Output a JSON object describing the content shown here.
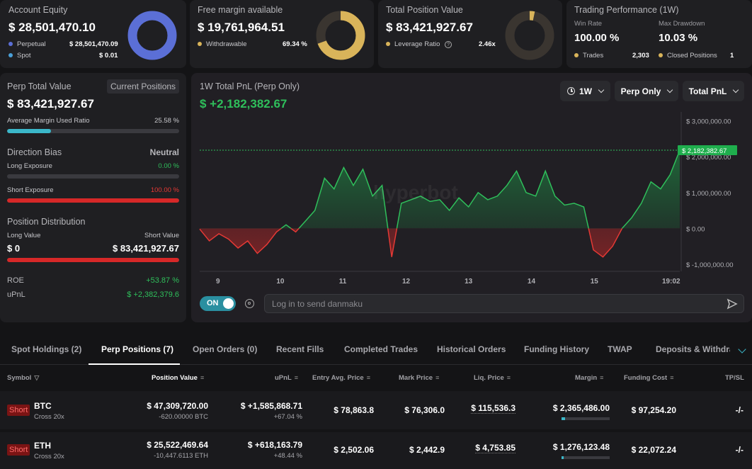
{
  "cards": {
    "equity": {
      "title": "Account Equity",
      "value": "$ 28,501,470.10",
      "perp_label": "Perpetual",
      "perp_value": "$ 28,501,470.09",
      "spot_label": "Spot",
      "spot_value": "$ 0.01",
      "perp_color": "#5b6fd6",
      "spot_color": "#4aa0d8"
    },
    "margin": {
      "title": "Free margin available",
      "value": "$ 19,761,964.51",
      "withdraw_label": "Withdrawable",
      "withdraw_value": "69.34 %",
      "ratio": 0.6934,
      "color": "#d9b45a"
    },
    "position": {
      "title": "Total Position Value",
      "value": "$ 83,421,927.67",
      "leverage_label": "Leverage Ratio",
      "leverage_value": "2.46x",
      "color": "#d9b45a"
    },
    "performance": {
      "title": "Trading Performance (1W)",
      "winrate_label": "Win Rate",
      "winrate_value": "100.00 %",
      "drawdown_label": "Max Drawdown",
      "drawdown_value": "10.03 %",
      "trades_label": "Trades",
      "trades_value": "2,303",
      "closed_label": "Closed Positions",
      "closed_value": "1"
    }
  },
  "left": {
    "perp_total_label": "Perp Total Value",
    "current_positions_btn": "Current Positions",
    "perp_total_value": "$ 83,421,927.67",
    "margin_ratio_label": "Average Margin Used Ratio",
    "margin_ratio_value": "25.58 %",
    "margin_ratio": 0.2558,
    "direction_label": "Direction Bias",
    "direction_value": "Neutral",
    "long_exposure_label": "Long Exposure",
    "long_exposure_value": "0.00 %",
    "short_exposure_label": "Short Exposure",
    "short_exposure_value": "100.00 %",
    "short_exposure": 1.0,
    "distribution_label": "Position Distribution",
    "long_value_label": "Long Value",
    "short_value_label": "Short Value",
    "long_value": "$ 0",
    "short_value": "$ 83,421,927.67",
    "roe_label": "ROE",
    "roe_value": "+53.87 %",
    "upnl_label": "uPnL",
    "upnl_value": "$ +2,382,379.6"
  },
  "chart_panel": {
    "title": "1W Total PnL (Perp Only)",
    "value": "$ +2,182,382.67",
    "range_btn": "1W",
    "scope_btn": "Perp Only",
    "metric_btn": "Total PnL",
    "toggle_label": "ON",
    "danmaku_placeholder": "Log in to send danmaku",
    "watermark": "hyperbot",
    "current_label": "$ 2,182,382.67"
  },
  "chart_data": {
    "type": "area",
    "title": "1W Total PnL (Perp Only)",
    "x_ticks": [
      "9",
      "10",
      "11",
      "12",
      "13",
      "14",
      "15",
      "19:02"
    ],
    "y_ticks": [
      "$ 3,000,000.00",
      "$ 2,000,000.00",
      "$ 1,000,000.00",
      "$ 0.00",
      "$ -1,000,000.00"
    ],
    "y_tick_values": [
      3000000,
      2000000,
      1000000,
      0,
      -1000000
    ],
    "ylim": [
      -1200000,
      3250000
    ],
    "xlim": [
      0,
      100
    ],
    "x": [
      0,
      2,
      4,
      6,
      8,
      10,
      12,
      14,
      16,
      18,
      20,
      22,
      24,
      26,
      28,
      30,
      32,
      34,
      36,
      38,
      40,
      42,
      44,
      46,
      48,
      50,
      52,
      54,
      56,
      58,
      60,
      62,
      64,
      66,
      68,
      70,
      72,
      74,
      76,
      78,
      80,
      82,
      84,
      86,
      88,
      90,
      92,
      94,
      96,
      98,
      100
    ],
    "values": [
      -20000,
      -350000,
      -150000,
      -300000,
      -550000,
      -350000,
      -700000,
      -450000,
      -100000,
      100000,
      -100000,
      200000,
      500000,
      1400000,
      1100000,
      1700000,
      1200000,
      1650000,
      900000,
      1200000,
      -800000,
      700000,
      800000,
      900000,
      750000,
      800000,
      500000,
      850000,
      600000,
      1000000,
      800000,
      900000,
      1200000,
      1600000,
      1000000,
      900000,
      1600000,
      900000,
      650000,
      700000,
      600000,
      -600000,
      -800000,
      -500000,
      0,
      300000,
      700000,
      1300000,
      1100000,
      1500000,
      2182382.67
    ],
    "grid": true,
    "marker_value": 2182382.67
  },
  "tabs": [
    "Spot Holdings (2)",
    "Perp Positions (7)",
    "Open Orders (0)",
    "Recent Fills",
    "Completed Trades",
    "Historical Orders",
    "Funding History",
    "TWAP",
    "Deposits & Withdraw"
  ],
  "table": {
    "headers": {
      "symbol": "Symbol",
      "position_value": "Position Value",
      "upnl": "uPnL",
      "entry": "Entry Avg. Price",
      "mark": "Mark Price",
      "liq": "Liq. Price",
      "margin": "Margin",
      "funding": "Funding Cost",
      "tpsl": "TP/SL"
    },
    "rows": [
      {
        "side": "Short",
        "symbol": "BTC",
        "mode": "Cross 20x",
        "position_value": "$ 47,309,720.00",
        "size": "-620.00000 BTC",
        "upnl": "$ +1,585,868.71",
        "upnl_pct": "+67.04 %",
        "entry": "$ 78,863.8",
        "mark": "$ 76,306.0",
        "liq": "$ 115,536.3",
        "margin": "$ 2,365,486.00",
        "margin_ratio": 0.08,
        "funding": "$ 97,254.20",
        "tpsl": "-/-"
      },
      {
        "side": "Short",
        "symbol": "ETH",
        "mode": "Cross 20x",
        "position_value": "$ 25,522,469.64",
        "size": "-10,447.6113 ETH",
        "upnl": "$ +618,163.79",
        "upnl_pct": "+48.44 %",
        "entry": "$ 2,502.06",
        "mark": "$ 2,442.9",
        "liq": "$ 4,753.85",
        "margin": "$ 1,276,123.48",
        "margin_ratio": 0.05,
        "funding": "$ 22,072.24",
        "tpsl": "-/-"
      }
    ]
  }
}
